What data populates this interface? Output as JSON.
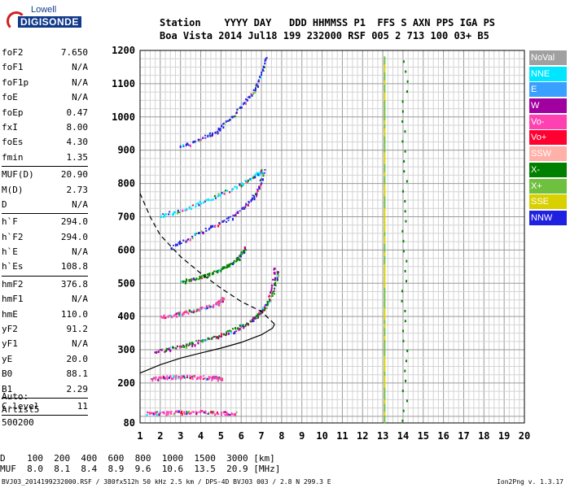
{
  "logo": {
    "line1": "Lowell",
    "line2": "DIGISONDE"
  },
  "header": {
    "labels": [
      "Station",
      "YYYY",
      "DAY",
      "DDD",
      "HHMMSS",
      "P1",
      "FFS",
      "S",
      "AXN",
      "PPS",
      "IGA",
      "PS"
    ],
    "values": [
      "Boa Vista",
      "2014",
      "Jul18",
      "199",
      "232000",
      "RSF",
      "005",
      "2",
      "713",
      "100",
      "03+",
      "B5"
    ]
  },
  "params": [
    {
      "name": "foF2",
      "value": "7.650"
    },
    {
      "name": "foF1",
      "value": "N/A"
    },
    {
      "name": "foF1p",
      "value": "N/A"
    },
    {
      "name": "foE",
      "value": "N/A"
    },
    {
      "name": "foEp",
      "value": "0.47"
    },
    {
      "name": "fxI",
      "value": "8.00"
    },
    {
      "name": "foEs",
      "value": "4.30"
    },
    {
      "name": "fmin",
      "value": "1.35"
    },
    {
      "sep": true
    },
    {
      "name": "MUF(D)",
      "value": "20.90"
    },
    {
      "name": "M(D)",
      "value": "2.73"
    },
    {
      "name": "D",
      "value": "N/A"
    },
    {
      "sep": true
    },
    {
      "name": "h`F",
      "value": "294.0"
    },
    {
      "name": "h`F2",
      "value": "294.0"
    },
    {
      "name": "h`E",
      "value": "N/A"
    },
    {
      "name": "h`Es",
      "value": "108.8"
    },
    {
      "sep": true
    },
    {
      "name": "hmF2",
      "value": "376.8"
    },
    {
      "name": "hmF1",
      "value": "N/A"
    },
    {
      "name": "hmE",
      "value": "110.0"
    },
    {
      "name": "yF2",
      "value": "91.2"
    },
    {
      "name": "yF1",
      "value": "N/A"
    },
    {
      "name": "yE",
      "value": "20.0"
    },
    {
      "name": "B0",
      "value": "88.1"
    },
    {
      "name": "B1",
      "value": "2.29"
    },
    {
      "sep": true
    },
    {
      "name": "C-level",
      "value": "11"
    },
    {
      "sep": true
    }
  ],
  "extra": [
    "Auto:",
    "Artist5",
    "500200"
  ],
  "legend": [
    {
      "label": "NoVal",
      "color": "#a0a0a0"
    },
    {
      "label": "NNE",
      "color": "#00e6ff"
    },
    {
      "label": "E",
      "color": "#3aa0ff"
    },
    {
      "label": "W",
      "color": "#a000a0"
    },
    {
      "label": "Vo-",
      "color": "#ff40b0"
    },
    {
      "label": "Vo+",
      "color": "#ff0030"
    },
    {
      "label": "SSW",
      "color": "#ffb0a8"
    },
    {
      "label": "X-",
      "color": "#008000"
    },
    {
      "label": "X+",
      "color": "#70c040"
    },
    {
      "label": "SSE",
      "color": "#d8d000"
    },
    {
      "label": "NNW",
      "color": "#2020e0"
    }
  ],
  "footer": {
    "d_label": "D",
    "d_values": [
      "100",
      "200",
      "400",
      "600",
      "800",
      "1000",
      "1500",
      "3000",
      "[km]"
    ],
    "muf_label": "MUF",
    "muf_values": [
      "8.0",
      "8.1",
      "8.4",
      "8.9",
      "9.6",
      "10.6",
      "13.5",
      "20.9",
      "[MHz]"
    ],
    "info": "BVJ03_2014199232000.RSF / 380fx512h 50 kHz 2.5 km / DPS-4D BVJ03 003 / 2.8 N 299.3 E",
    "version": "Ion2Png v. 1.3.17"
  },
  "chart_data": {
    "type": "scatter",
    "title": "",
    "xlabel": "",
    "ylabel": "",
    "xlim": [
      1,
      20
    ],
    "ylim": [
      80,
      1200
    ],
    "x_ticks": [
      1,
      2,
      3,
      4,
      5,
      6,
      7,
      8,
      9,
      10,
      11,
      12,
      13,
      14,
      15,
      16,
      17,
      18,
      19,
      20
    ],
    "y_ticks": [
      80,
      200,
      300,
      400,
      500,
      600,
      700,
      800,
      900,
      1000,
      1100,
      1200
    ],
    "grid": true,
    "series": [
      {
        "name": "O-trace F2 (1 hop)",
        "color": "#a000a0",
        "points": [
          [
            1.7,
            295
          ],
          [
            2.5,
            305
          ],
          [
            3.5,
            318
          ],
          [
            4.5,
            335
          ],
          [
            5.5,
            355
          ],
          [
            6.3,
            380
          ],
          [
            6.9,
            410
          ],
          [
            7.3,
            450
          ],
          [
            7.55,
            500
          ],
          [
            7.65,
            550
          ]
        ]
      },
      {
        "name": "X-trace F2 (1 hop)",
        "color": "#008000",
        "points": [
          [
            2.2,
            302
          ],
          [
            3.3,
            318
          ],
          [
            4.5,
            338
          ],
          [
            5.6,
            362
          ],
          [
            6.6,
            395
          ],
          [
            7.2,
            430
          ],
          [
            7.6,
            480
          ],
          [
            7.8,
            540
          ]
        ]
      },
      {
        "name": "F 2nd hop",
        "color": "#ff40b0",
        "points": [
          [
            2,
            400
          ],
          [
            3,
            410
          ],
          [
            4,
            425
          ],
          [
            4.8,
            440
          ],
          [
            5.1,
            455
          ]
        ]
      },
      {
        "name": "F 2nd hop X",
        "color": "#008000",
        "points": [
          [
            3,
            505
          ],
          [
            4,
            520
          ],
          [
            5,
            545
          ],
          [
            5.8,
            575
          ],
          [
            6.2,
            610
          ]
        ]
      },
      {
        "name": "F 3rd hop",
        "color": "#2020e0",
        "points": [
          [
            2.5,
            610
          ],
          [
            3.5,
            640
          ],
          [
            4.5,
            670
          ],
          [
            5.5,
            700
          ],
          [
            6.3,
            740
          ],
          [
            6.8,
            780
          ],
          [
            7.1,
            840
          ]
        ]
      },
      {
        "name": "F 4th hop",
        "color": "#00e6ff",
        "points": [
          [
            2,
            705
          ],
          [
            3,
            720
          ],
          [
            4,
            745
          ],
          [
            5,
            770
          ],
          [
            6,
            800
          ],
          [
            6.8,
            830
          ],
          [
            7.0,
            840
          ]
        ]
      },
      {
        "name": "F 5th hop",
        "color": "#2020e0",
        "points": [
          [
            3,
            910
          ],
          [
            4,
            935
          ],
          [
            4.8,
            960
          ],
          [
            5.5,
            1000
          ],
          [
            6.2,
            1050
          ],
          [
            6.8,
            1100
          ],
          [
            7.2,
            1180
          ]
        ]
      },
      {
        "name": "Es",
        "color": "#ff40b0",
        "points": [
          [
            1.3,
            110
          ],
          [
            2,
            112
          ],
          [
            3,
            115
          ],
          [
            4,
            115
          ],
          [
            5,
            112
          ],
          [
            5.7,
            110
          ]
        ]
      },
      {
        "name": "Es 2nd hop",
        "color": "#ff40b0",
        "points": [
          [
            1.5,
            215
          ],
          [
            2.5,
            220
          ],
          [
            3.5,
            220
          ],
          [
            4.5,
            218
          ],
          [
            5,
            215
          ]
        ]
      }
    ],
    "profile_solid": [
      [
        1,
        230
      ],
      [
        2,
        255
      ],
      [
        3,
        275
      ],
      [
        4,
        290
      ],
      [
        5,
        305
      ],
      [
        6,
        322
      ],
      [
        7,
        345
      ],
      [
        7.55,
        365
      ],
      [
        7.65,
        377
      ]
    ],
    "profile_dashed": [
      [
        1,
        770
      ],
      [
        1.5,
        700
      ],
      [
        2,
        645
      ],
      [
        3,
        580
      ],
      [
        4,
        530
      ],
      [
        5,
        485
      ],
      [
        6,
        445
      ],
      [
        7,
        415
      ],
      [
        7.65,
        377
      ]
    ]
  }
}
